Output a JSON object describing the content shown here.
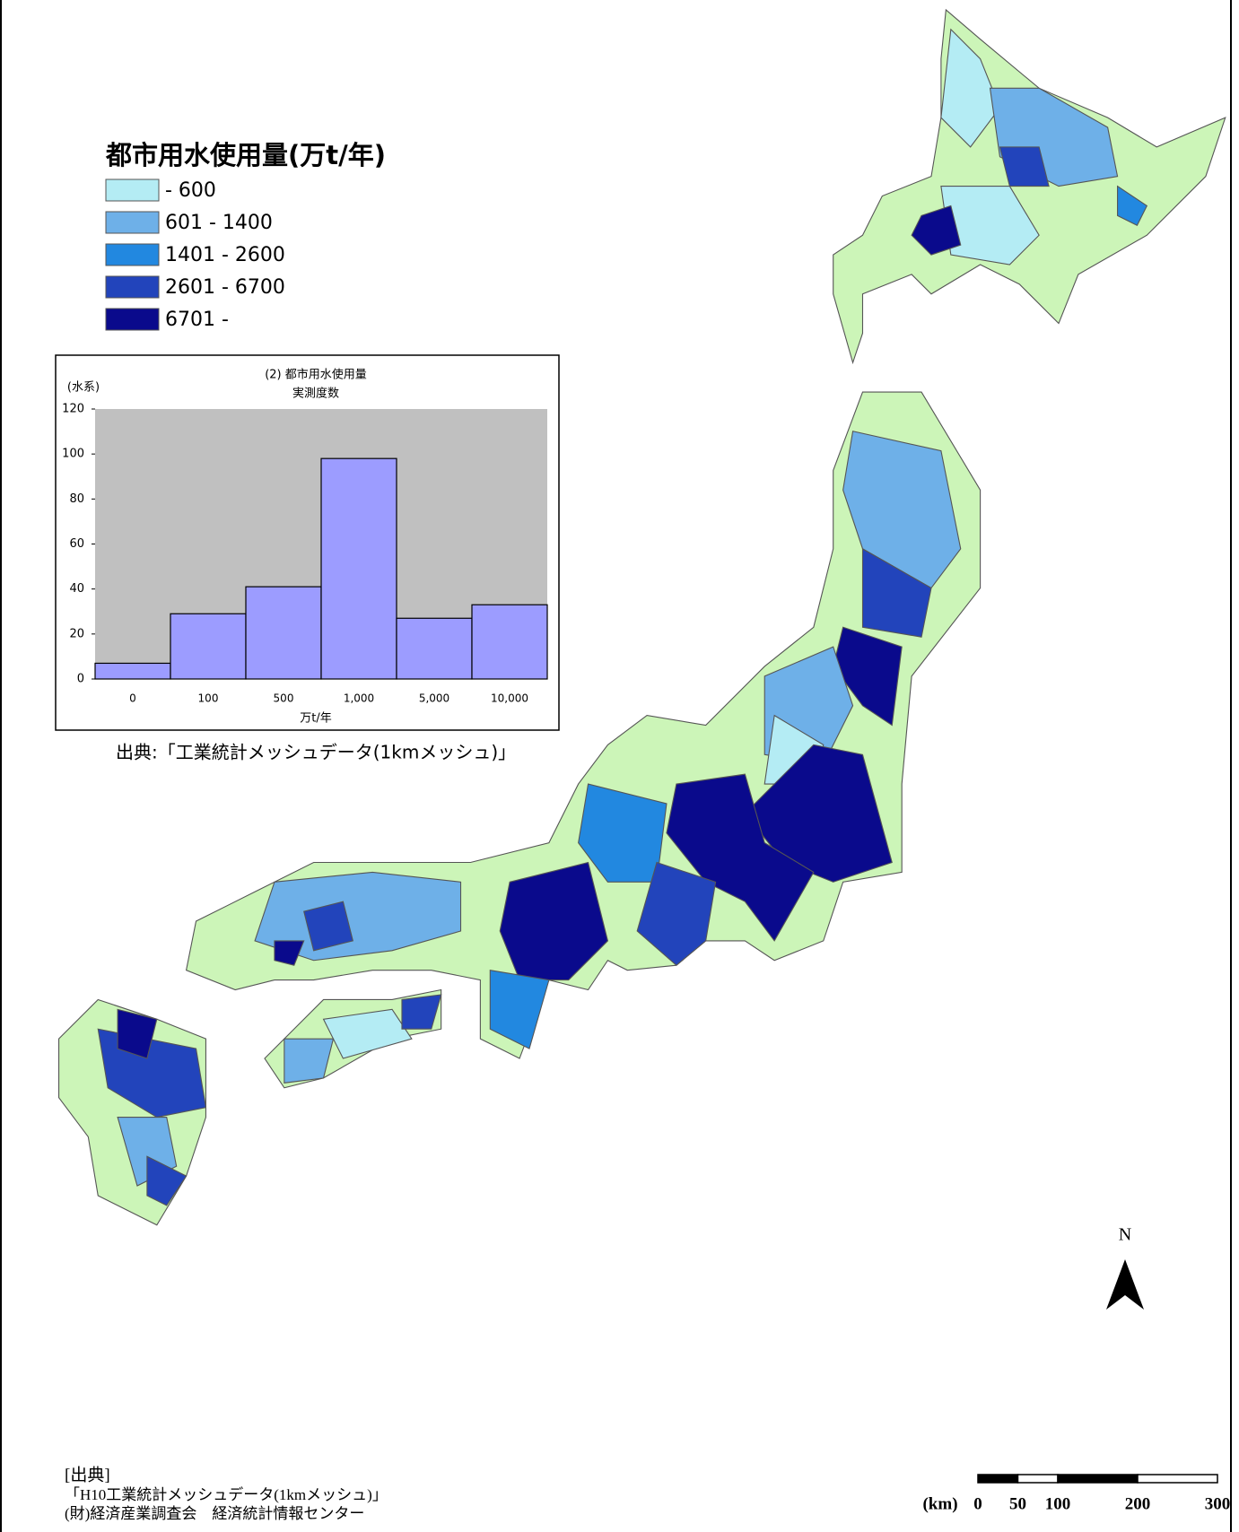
{
  "legend": {
    "title": "都市用水使用量(万t/年)",
    "items": [
      {
        "label": "- 600",
        "color": "#b4ecf4"
      },
      {
        "label": "601 - 1400",
        "color": "#6eb0e8"
      },
      {
        "label": "1401 - 2600",
        "color": "#2288e0"
      },
      {
        "label": "2601 - 6700",
        "color": "#2244bb"
      },
      {
        "label": "6701 -",
        "color": "#0a0a8c"
      }
    ]
  },
  "land_color": "#ccf5b8",
  "chart_data": {
    "type": "bar",
    "title": "(2) 都市用水使用量",
    "subtitle": "実測度数",
    "ylabel": "(水系)",
    "xlabel": "万t/年",
    "categories": [
      "0",
      "100",
      "500",
      "1,000",
      "5,000",
      "10,000"
    ],
    "values": [
      7,
      29,
      41,
      98,
      27,
      33
    ],
    "color": "#9c9cff",
    "background": "#c0c0c0",
    "ylim": [
      0,
      120
    ],
    "yticks": [
      0,
      20,
      40,
      60,
      80,
      100,
      120
    ]
  },
  "chart_source": "出典:「工業統計メッシュデータ(1kmメッシュ)」",
  "source": {
    "heading": "[出典]",
    "lines": [
      "「H10工業統計メッシュデータ(1kmメッシュ)」",
      "(財)経済産業調査会　経済統計情報センター"
    ]
  },
  "scale_bar": {
    "unit": "(km)",
    "ticks": [
      0,
      50,
      100,
      200,
      300
    ]
  },
  "north": "N"
}
